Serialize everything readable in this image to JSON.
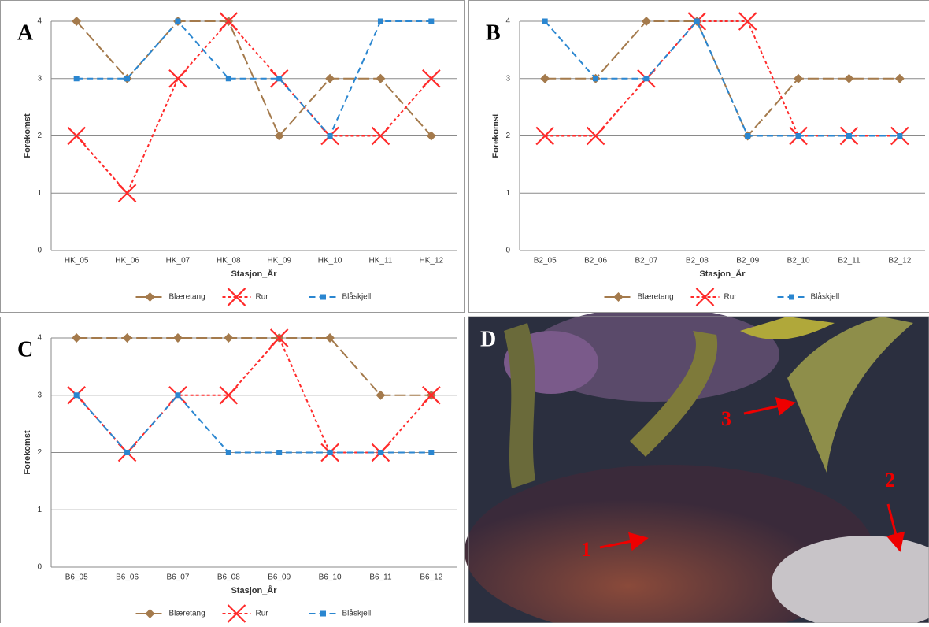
{
  "chart_data": [
    {
      "type": "line",
      "panel_label": "A",
      "ylabel": "Forekomst",
      "xlabel": "Stasjon_År",
      "categories": [
        "HK_05",
        "HK_06",
        "HK_07",
        "HK_08",
        "HK_09",
        "HK_10",
        "HK_11",
        "HK_12"
      ],
      "ylim": [
        0,
        4
      ],
      "yticks": [
        0,
        1,
        2,
        3,
        4
      ],
      "grid": true,
      "legend": "bottom",
      "series": [
        {
          "name": "Blæretang",
          "color": "#a47a4c",
          "values": [
            4,
            3,
            4,
            4,
            2,
            3,
            3,
            2
          ]
        },
        {
          "name": "Rur",
          "color": "#ff2a2a",
          "values": [
            2,
            1,
            3,
            4,
            3,
            2,
            2,
            3
          ]
        },
        {
          "name": "Blåskjell",
          "color": "#2a86d0",
          "values": [
            3,
            3,
            4,
            3,
            3,
            2,
            4,
            4
          ]
        }
      ]
    },
    {
      "type": "line",
      "panel_label": "B",
      "ylabel": "Forekomst",
      "xlabel": "Stasjon_År",
      "categories": [
        "B2_05",
        "B2_06",
        "B2_07",
        "B2_08",
        "B2_09",
        "B2_10",
        "B2_11",
        "B2_12"
      ],
      "ylim": [
        0,
        4
      ],
      "yticks": [
        0,
        1,
        2,
        3,
        4
      ],
      "grid": true,
      "legend": "bottom",
      "series": [
        {
          "name": "Blæretang",
          "color": "#a47a4c",
          "values": [
            3,
            3,
            4,
            4,
            2,
            3,
            3,
            3
          ]
        },
        {
          "name": "Rur",
          "color": "#ff2a2a",
          "values": [
            2,
            2,
            3,
            4,
            4,
            2,
            2,
            2
          ]
        },
        {
          "name": "Blåskjell",
          "color": "#2a86d0",
          "values": [
            4,
            3,
            3,
            4,
            2,
            2,
            2,
            2
          ]
        }
      ]
    },
    {
      "type": "line",
      "panel_label": "C",
      "ylabel": "Forekomst",
      "xlabel": "Stasjon_År",
      "categories": [
        "B6_05",
        "B6_06",
        "B6_07",
        "B6_08",
        "B6_09",
        "B6_10",
        "B6_11",
        "B6_12"
      ],
      "ylim": [
        0,
        4
      ],
      "yticks": [
        0,
        1,
        2,
        3,
        4
      ],
      "grid": true,
      "legend": "bottom",
      "series": [
        {
          "name": "Blæretang",
          "color": "#a47a4c",
          "values": [
            4,
            4,
            4,
            4,
            4,
            4,
            3,
            3
          ]
        },
        {
          "name": "Rur",
          "color": "#ff2a2a",
          "values": [
            3,
            2,
            3,
            3,
            4,
            2,
            2,
            3
          ]
        },
        {
          "name": "Blåskjell",
          "color": "#2a86d0",
          "values": [
            3,
            2,
            3,
            2,
            2,
            2,
            2,
            2
          ]
        }
      ]
    }
  ],
  "photo": {
    "panel_label": "D",
    "annotations": [
      "1",
      "2",
      "3"
    ]
  }
}
